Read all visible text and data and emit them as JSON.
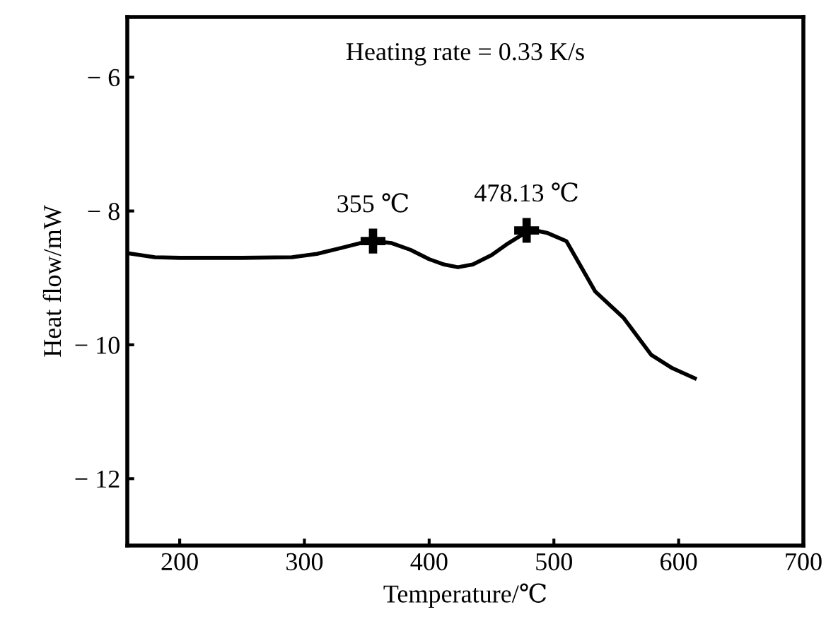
{
  "chart_data": {
    "type": "line",
    "xlabel": "Temperature/℃",
    "ylabel": "Heat flow/mW",
    "xlim": [
      158,
      700
    ],
    "xticks": [
      200,
      300,
      400,
      500,
      600,
      700
    ],
    "ylim": [
      -13,
      -5.1
    ],
    "yticks": [
      -6,
      -8,
      -10,
      -12
    ],
    "grid": false,
    "legend": false,
    "series": [
      {
        "color": "#000000",
        "marker": "none",
        "x": [
          158,
          180,
          200,
          250,
          290,
          310,
          330,
          345,
          356,
          370,
          385,
          400,
          412,
          423,
          435,
          450,
          462,
          475,
          485,
          495,
          510,
          533,
          556,
          578,
          595,
          613
        ],
        "values": [
          -8.63,
          -8.69,
          -8.7,
          -8.7,
          -8.69,
          -8.64,
          -8.55,
          -8.48,
          -8.45,
          -8.48,
          -8.58,
          -8.72,
          -8.8,
          -8.84,
          -8.8,
          -8.66,
          -8.5,
          -8.35,
          -8.29,
          -8.33,
          -8.45,
          -9.2,
          -9.6,
          -10.15,
          -10.35,
          -10.5
        ]
      },
      {
        "type": "scatter",
        "color": "#000000",
        "marker": "cross",
        "x": [
          355,
          478.13
        ],
        "values": [
          -8.45,
          -8.29
        ]
      }
    ],
    "annotations": [
      "Heating rate = 0.33 K/s",
      {
        "text": "355 ℃",
        "x": 355,
        "y": -8.45
      },
      {
        "text": "478.13 ℃",
        "x": 478.13,
        "y": -8.29
      }
    ]
  }
}
